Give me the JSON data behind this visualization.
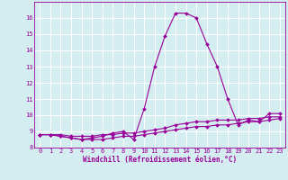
{
  "xlabel": "Windchill (Refroidissement éolien,°C)",
  "x_values": [
    0,
    1,
    2,
    3,
    4,
    5,
    6,
    7,
    8,
    9,
    10,
    11,
    12,
    13,
    14,
    15,
    16,
    17,
    18,
    19,
    20,
    21,
    22,
    23
  ],
  "line1_y": [
    8.8,
    8.8,
    8.7,
    8.6,
    8.5,
    8.6,
    8.7,
    8.9,
    9.0,
    8.5,
    10.4,
    13.0,
    14.9,
    16.3,
    16.3,
    16.0,
    14.4,
    13.0,
    11.0,
    9.4,
    9.7,
    9.6,
    10.1,
    10.1
  ],
  "line2_y": [
    8.8,
    8.8,
    8.8,
    8.7,
    8.7,
    8.7,
    8.8,
    8.8,
    8.9,
    8.9,
    9.0,
    9.1,
    9.2,
    9.4,
    9.5,
    9.6,
    9.6,
    9.7,
    9.7,
    9.7,
    9.8,
    9.8,
    9.9,
    9.9
  ],
  "line3_y": [
    8.8,
    8.8,
    8.7,
    8.6,
    8.5,
    8.5,
    8.5,
    8.6,
    8.7,
    8.7,
    8.8,
    8.9,
    9.0,
    9.1,
    9.2,
    9.3,
    9.3,
    9.4,
    9.4,
    9.5,
    9.6,
    9.6,
    9.7,
    9.8
  ],
  "line_color": "#990099",
  "bg_color": "#d4edf0",
  "grid_color": "#ffffff",
  "ylim": [
    8.0,
    17.0
  ],
  "xlim": [
    -0.5,
    23.5
  ],
  "yticks": [
    8,
    9,
    10,
    11,
    12,
    13,
    14,
    15,
    16
  ],
  "xticks": [
    0,
    1,
    2,
    3,
    4,
    5,
    6,
    7,
    8,
    9,
    10,
    11,
    12,
    13,
    14,
    15,
    16,
    17,
    18,
    19,
    20,
    21,
    22,
    23
  ]
}
